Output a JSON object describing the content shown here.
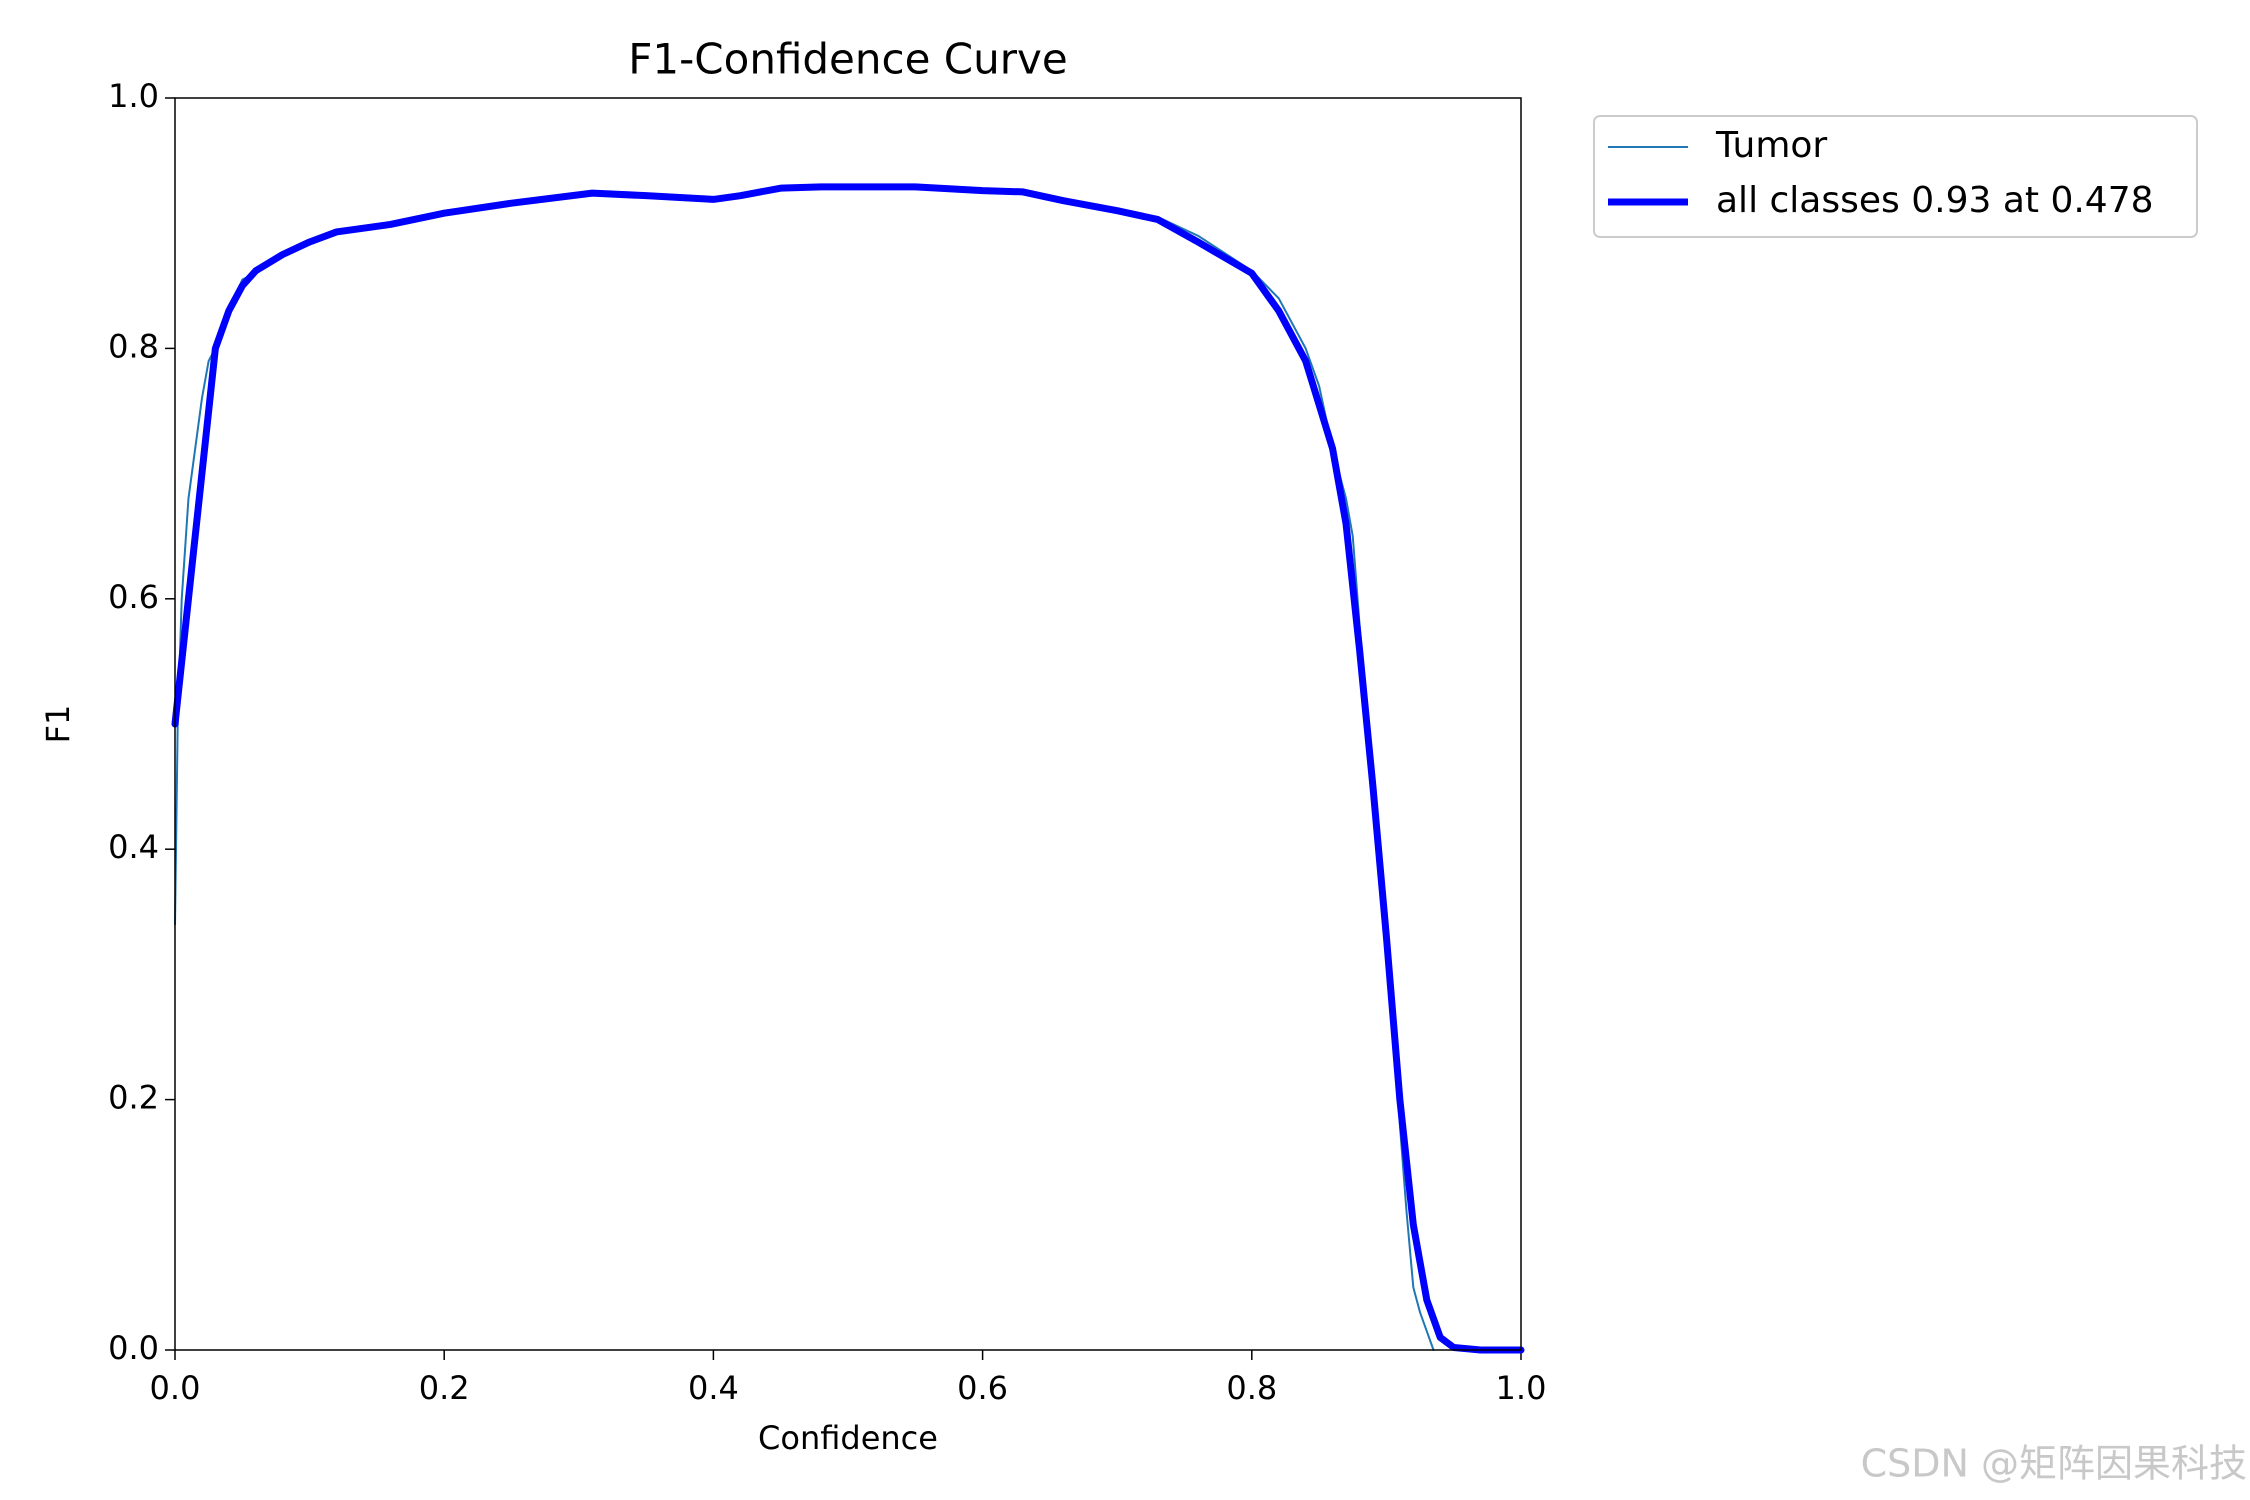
{
  "chart_data": {
    "type": "line",
    "title": "F1-Confidence Curve",
    "x_label": "Confidence",
    "y_label": "F1",
    "xlim": [
      0,
      1
    ],
    "ylim": [
      0,
      1
    ],
    "xticks": [
      {
        "value": 0,
        "label": "0.0"
      },
      0.2,
      0.4,
      0.6,
      0.8,
      {
        "value": 1,
        "label": "1.0"
      }
    ],
    "yticks": [
      {
        "value": 0,
        "label": "0.0"
      },
      0.2,
      0.4,
      0.6,
      0.8,
      {
        "value": 1,
        "label": "1.0"
      }
    ],
    "grid": false,
    "legend": "outside-upper-right",
    "series": [
      {
        "name": "Tumor",
        "color": "#1f77b4",
        "width": 2,
        "x": [
          0,
          0.002,
          0.005,
          0.01,
          0.015,
          0.02,
          0.025,
          0.03,
          0.035,
          0.04,
          0.05,
          0.06,
          0.07,
          0.1,
          0.12,
          0.16,
          0.2,
          0.25,
          0.31,
          0.35,
          0.4,
          0.42,
          0.45,
          0.5,
          0.55,
          0.6,
          0.63,
          0.66,
          0.7,
          0.73,
          0.76,
          0.8,
          0.82,
          0.84,
          0.85,
          0.86,
          0.87,
          0.875,
          0.88,
          0.885,
          0.89,
          0.9,
          0.91,
          0.915,
          0.92,
          0.925,
          0.93,
          0.935
        ],
        "values": [
          0.34,
          0.5,
          0.6,
          0.68,
          0.72,
          0.76,
          0.79,
          0.8,
          0.82,
          0.83,
          0.855,
          0.86,
          0.87,
          0.885,
          0.895,
          0.9,
          0.91,
          0.917,
          0.925,
          0.923,
          0.919,
          0.922,
          0.928,
          0.928,
          0.929,
          0.926,
          0.925,
          0.918,
          0.91,
          0.905,
          0.89,
          0.862,
          0.84,
          0.8,
          0.77,
          0.72,
          0.68,
          0.65,
          0.58,
          0.52,
          0.45,
          0.33,
          0.18,
          0.11,
          0.05,
          0.03,
          0.015,
          0
        ]
      },
      {
        "name": "all classes 0.93 at 0.478",
        "color": "#0000ff",
        "width": 7,
        "x": [
          0,
          0.01,
          0.02,
          0.03,
          0.04,
          0.05,
          0.06,
          0.08,
          0.1,
          0.12,
          0.16,
          0.2,
          0.25,
          0.31,
          0.35,
          0.4,
          0.42,
          0.45,
          0.48,
          0.55,
          0.6,
          0.63,
          0.66,
          0.7,
          0.73,
          0.76,
          0.8,
          0.82,
          0.84,
          0.86,
          0.87,
          0.88,
          0.89,
          0.9,
          0.91,
          0.92,
          0.93,
          0.94,
          0.95,
          0.97,
          1
        ],
        "values": [
          0.5,
          0.6,
          0.7,
          0.8,
          0.83,
          0.85,
          0.862,
          0.875,
          0.885,
          0.893,
          0.899,
          0.908,
          0.916,
          0.924,
          0.922,
          0.919,
          0.922,
          0.928,
          0.929,
          0.929,
          0.926,
          0.925,
          0.918,
          0.91,
          0.903,
          0.885,
          0.86,
          0.83,
          0.79,
          0.72,
          0.66,
          0.56,
          0.45,
          0.33,
          0.2,
          0.1,
          0.04,
          0.01,
          0.002,
          0,
          0
        ]
      }
    ]
  },
  "watermark": "CSDN @矩阵因果科技"
}
